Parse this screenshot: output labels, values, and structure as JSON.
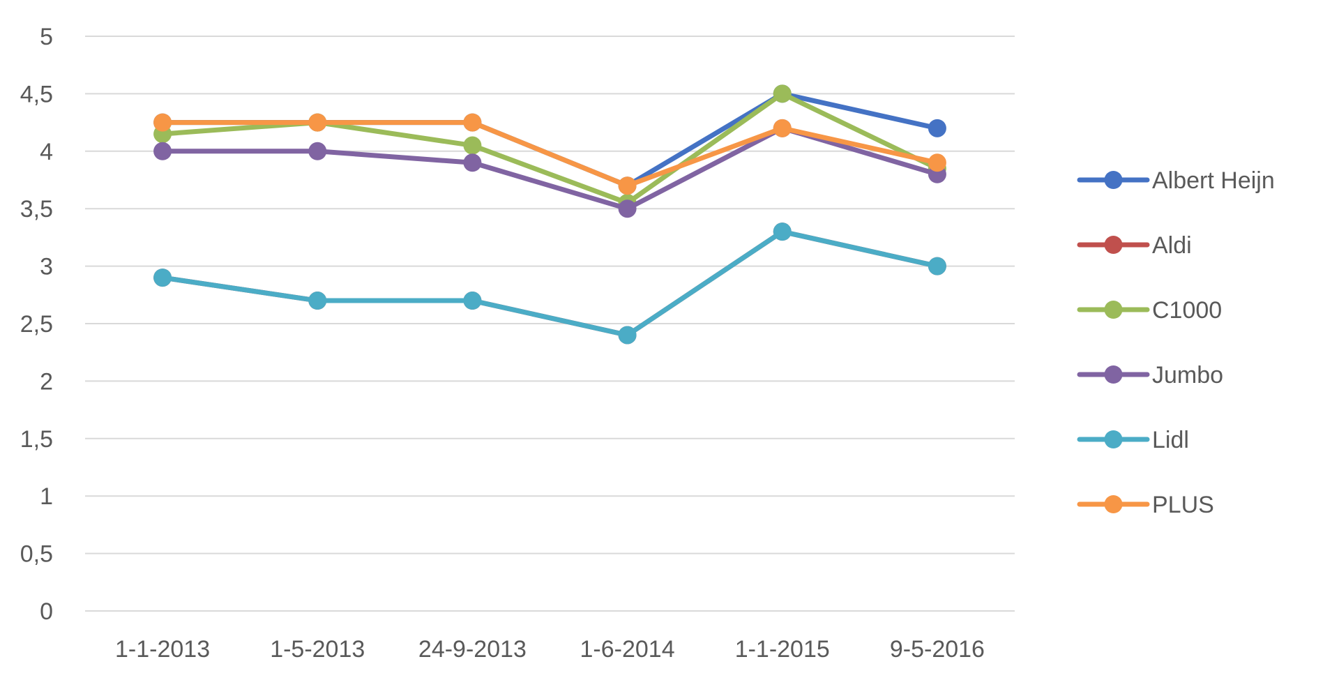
{
  "chart_data": {
    "type": "line",
    "title": "",
    "xlabel": "",
    "ylabel": "",
    "categories": [
      "1-1-2013",
      "1-5-2013",
      "24-9-2013",
      "1-6-2014",
      "1-1-2015",
      "9-5-2016"
    ],
    "ylim": [
      0,
      5
    ],
    "yticks": [
      0,
      0.5,
      1,
      1.5,
      2,
      2.5,
      3,
      3.5,
      4,
      4.5,
      5
    ],
    "ytick_labels": [
      "0",
      "0,5",
      "1",
      "1,5",
      "2",
      "2,5",
      "3",
      "3,5",
      "4",
      "4,5",
      "5"
    ],
    "grid": true,
    "legend_position": "right",
    "series": [
      {
        "name": "Albert Heijn",
        "color": "#4472C4",
        "values": [
          4.25,
          4.25,
          4.25,
          3.7,
          4.5,
          4.2
        ]
      },
      {
        "name": "Aldi",
        "color": "#C0504D",
        "values": [
          2.9,
          2.7,
          2.7,
          2.4,
          3.3,
          3.0
        ]
      },
      {
        "name": "C1000",
        "color": "#9BBB59",
        "values": [
          4.15,
          4.25,
          4.05,
          3.55,
          4.5,
          3.85
        ]
      },
      {
        "name": "Jumbo",
        "color": "#8064A2",
        "values": [
          4.0,
          4.0,
          3.9,
          3.5,
          4.2,
          3.8
        ]
      },
      {
        "name": "Lidl",
        "color": "#4BACC6",
        "values": [
          2.9,
          2.7,
          2.7,
          2.4,
          3.3,
          3.0
        ]
      },
      {
        "name": "PLUS",
        "color": "#F79646",
        "values": [
          4.25,
          4.25,
          4.25,
          3.7,
          4.2,
          3.9
        ]
      }
    ]
  }
}
